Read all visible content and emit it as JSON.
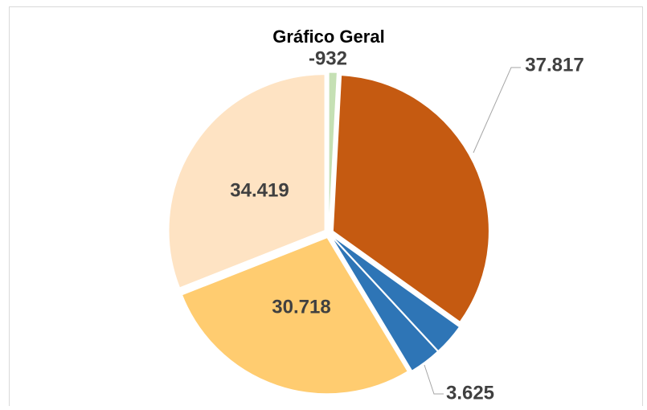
{
  "chart_data": {
    "type": "pie",
    "title": "Gráfico Geral",
    "values": [
      -932,
      37817,
      3600,
      3625,
      30718,
      34419
    ],
    "value_labels": [
      "-932",
      "37.817",
      null,
      "3.625",
      "30.718",
      "34.419"
    ],
    "colors": [
      "#c5e0b4",
      "#c55a11",
      "#2e75b6",
      "#2e75b6",
      "#ffcc70",
      "#fee3c3"
    ]
  }
}
